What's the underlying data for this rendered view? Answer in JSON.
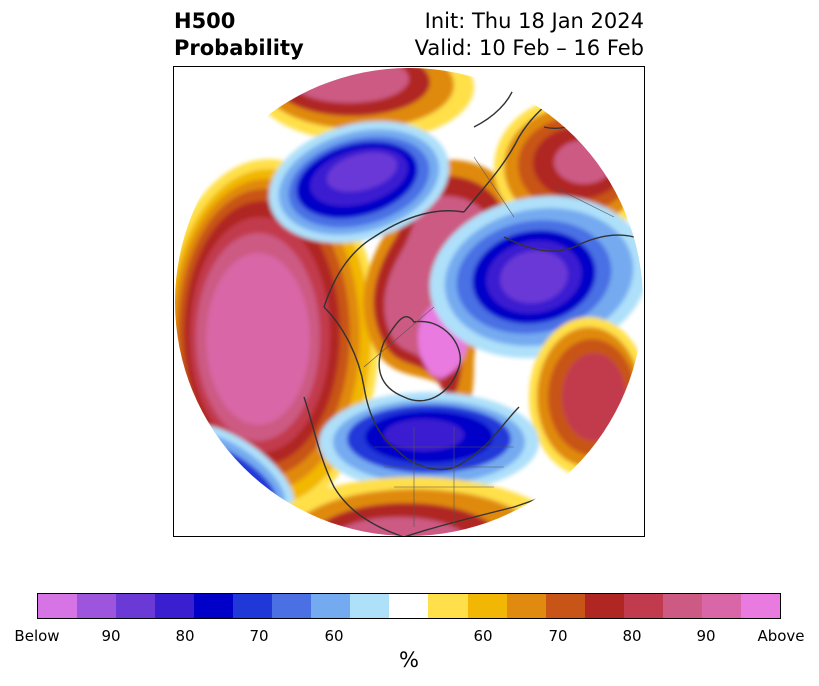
{
  "title": {
    "left_line1": "H500",
    "left_line2": "Probability",
    "right_line1": "Init: Thu 18 Jan 2024",
    "right_line2": "Valid: 10 Feb – 16 Feb"
  },
  "colorbar": {
    "colors": [
      "#d674e6",
      "#9e55de",
      "#6a39d6",
      "#3a1fd0",
      "#0000c8",
      "#2038d8",
      "#4a70e4",
      "#74aaf0",
      "#aee0fa",
      "#ffffff",
      "#ffe04a",
      "#f2b705",
      "#e08a10",
      "#c85418",
      "#b02622",
      "#c23a4e",
      "#cc5a82",
      "#d966a6",
      "#e87ae0"
    ],
    "tick_labels": [
      "Below",
      "90",
      "80",
      "70",
      "60",
      "60",
      "70",
      "80",
      "90",
      "Above"
    ],
    "unit_label": "%"
  },
  "map": {
    "projection": "polar stereographic (north pole)",
    "anomalies": [
      {
        "region": "Gulf of Alaska / North Pacific",
        "sign": "above",
        "max_level": "Above"
      },
      {
        "region": "Arctic / Greenland",
        "sign": "above",
        "max_level": "Above"
      },
      {
        "region": "Northern Europe",
        "sign": "above",
        "max_level": "90"
      },
      {
        "region": "Western Europe",
        "sign": "above",
        "max_level": "80"
      },
      {
        "region": "Eastern United States / Atlantic",
        "sign": "below",
        "max_level": "90"
      },
      {
        "region": "Central Russia",
        "sign": "below",
        "max_level": "90"
      },
      {
        "region": "Western Siberia",
        "sign": "below",
        "max_level": "90"
      },
      {
        "region": "Central Pacific",
        "sign": "below",
        "max_level": "80"
      },
      {
        "region": "Southern United States / Mexico",
        "sign": "above",
        "max_level": "90"
      }
    ]
  }
}
